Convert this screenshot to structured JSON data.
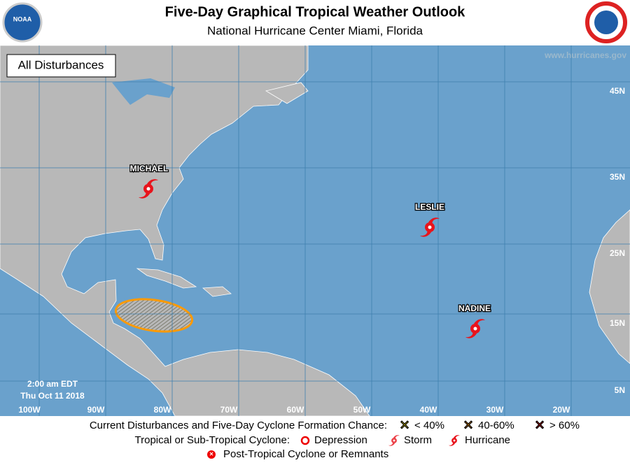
{
  "header": {
    "title": "Five-Day Graphical Tropical Weather Outlook",
    "subtitle": "National Hurricane Center  Miami, Florida"
  },
  "map": {
    "selector": "All Disturbances",
    "website": "www.hurricanes.gov",
    "latitude_labels": [
      "45N",
      "35N",
      "25N",
      "15N",
      "5N"
    ],
    "longitude_labels": [
      "100W",
      "90W",
      "80W",
      "70W",
      "60W",
      "50W",
      "40W",
      "30W",
      "20W"
    ],
    "storms": [
      {
        "name": "MICHAEL"
      },
      {
        "name": "LESLIE"
      },
      {
        "name": "NADINE"
      }
    ],
    "issued": {
      "time": "2:00 am EDT",
      "date": "Thu Oct 11 2018"
    }
  },
  "legend": {
    "disturbances": {
      "label": "Current Disturbances and Five-Day Cyclone Formation Chance:",
      "low": "< 40%",
      "medium": "40-60%",
      "high": "> 60%"
    },
    "cyclones": {
      "label": "Tropical or Sub-Tropical Cyclone:",
      "depression": "Depression",
      "storm": "Storm",
      "hurricane": "Hurricane"
    },
    "post_tropical": "Post-Tropical Cyclone or Remnants"
  }
}
